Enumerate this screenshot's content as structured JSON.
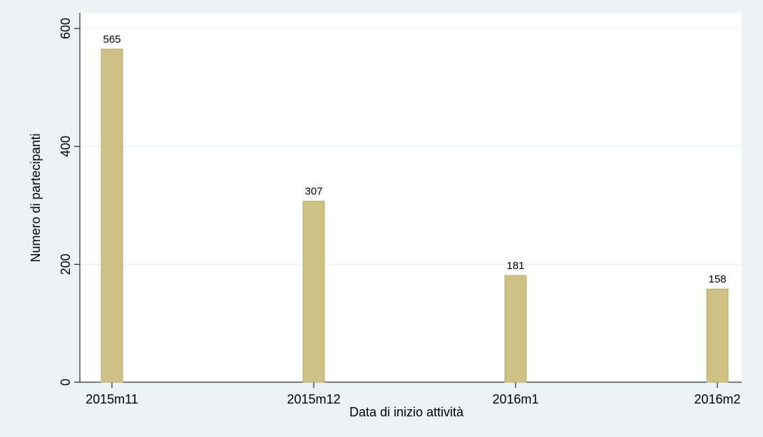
{
  "chart_data": {
    "type": "bar",
    "categories": [
      "2015m11",
      "2015m12",
      "2016m1",
      "2016m2"
    ],
    "values": [
      565,
      307,
      181,
      158
    ],
    "color": "#cdc184",
    "ylim": [
      0,
      600
    ],
    "yticks": [
      0,
      200,
      400,
      600
    ],
    "grid": true,
    "xlabel": "Data di inizio attività",
    "ylabel": "Numero di partecipanti"
  }
}
